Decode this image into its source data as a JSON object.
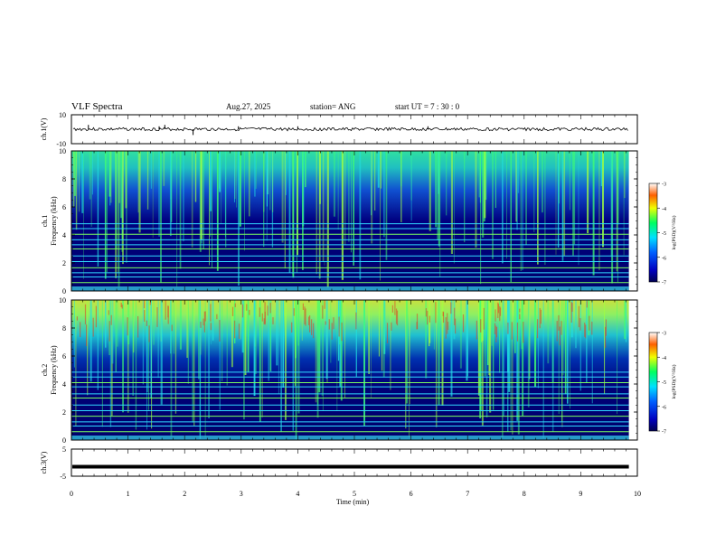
{
  "header": {
    "title": "VLF Spectra",
    "date": "Aug.27, 2025",
    "station": "station= ANG",
    "start": "start  UT =   7 : 30 : 0"
  },
  "chart_data": [
    {
      "type": "line",
      "name": "ch1-waveform",
      "ylabel": "ch.1(V)",
      "ylim": [
        -10,
        10
      ],
      "yticks": [
        "10",
        "-10"
      ],
      "baseline": 0,
      "spikes": [
        [
          0.3,
          3
        ],
        [
          1.55,
          2
        ],
        [
          1.65,
          3
        ],
        [
          2.15,
          -4
        ],
        [
          2.95,
          2
        ],
        [
          4.0,
          2
        ],
        [
          6.3,
          2
        ]
      ]
    },
    {
      "type": "heatmap",
      "name": "ch1-spectrogram",
      "ylabel_top": "ch.1",
      "ylabel": "Frequency  (kHz)",
      "ylim": [
        0,
        10
      ],
      "yticks": [
        "0",
        "2",
        "4",
        "6",
        "8",
        "10"
      ],
      "lines_khz": [
        0.6,
        1.0,
        1.3,
        1.65,
        2.1,
        2.5,
        3.0,
        3.3,
        3.65,
        4.05,
        4.45,
        4.8
      ],
      "colorbar": {
        "label": "log(PSD)(V²/Hz)",
        "range": [
          -7,
          -3
        ],
        "ticks": [
          "-3",
          "-4",
          "-5",
          "-6",
          "-7"
        ]
      }
    },
    {
      "type": "heatmap",
      "name": "ch2-spectrogram",
      "ylabel_top": "ch.2",
      "ylabel": "Frequency  (kHz)",
      "ylim": [
        0,
        10
      ],
      "yticks": [
        "0",
        "2",
        "4",
        "6",
        "8",
        "10"
      ],
      "lines_khz": [
        0.6,
        1.0,
        1.3,
        1.7,
        2.1,
        2.5,
        3.0,
        3.3,
        3.8,
        4.1,
        4.5,
        4.85
      ],
      "colorbar": {
        "label": "log(PSD)(V²/Hz)",
        "range": [
          -7,
          -3
        ],
        "ticks": [
          "-3",
          "-4",
          "-5",
          "-6",
          "-7"
        ]
      }
    },
    {
      "type": "line",
      "name": "ch3-signal",
      "ylabel": "ch.3(V)",
      "ylim": [
        -5,
        5
      ],
      "yticks": [
        "5",
        "-5"
      ],
      "value": -1.5
    }
  ],
  "xaxis": {
    "label": "Time  (min)",
    "xlim": [
      0,
      10
    ],
    "ticks": [
      "0",
      "1",
      "2",
      "3",
      "4",
      "5",
      "6",
      "7",
      "8",
      "9",
      "10"
    ],
    "data_end": 9.85
  }
}
